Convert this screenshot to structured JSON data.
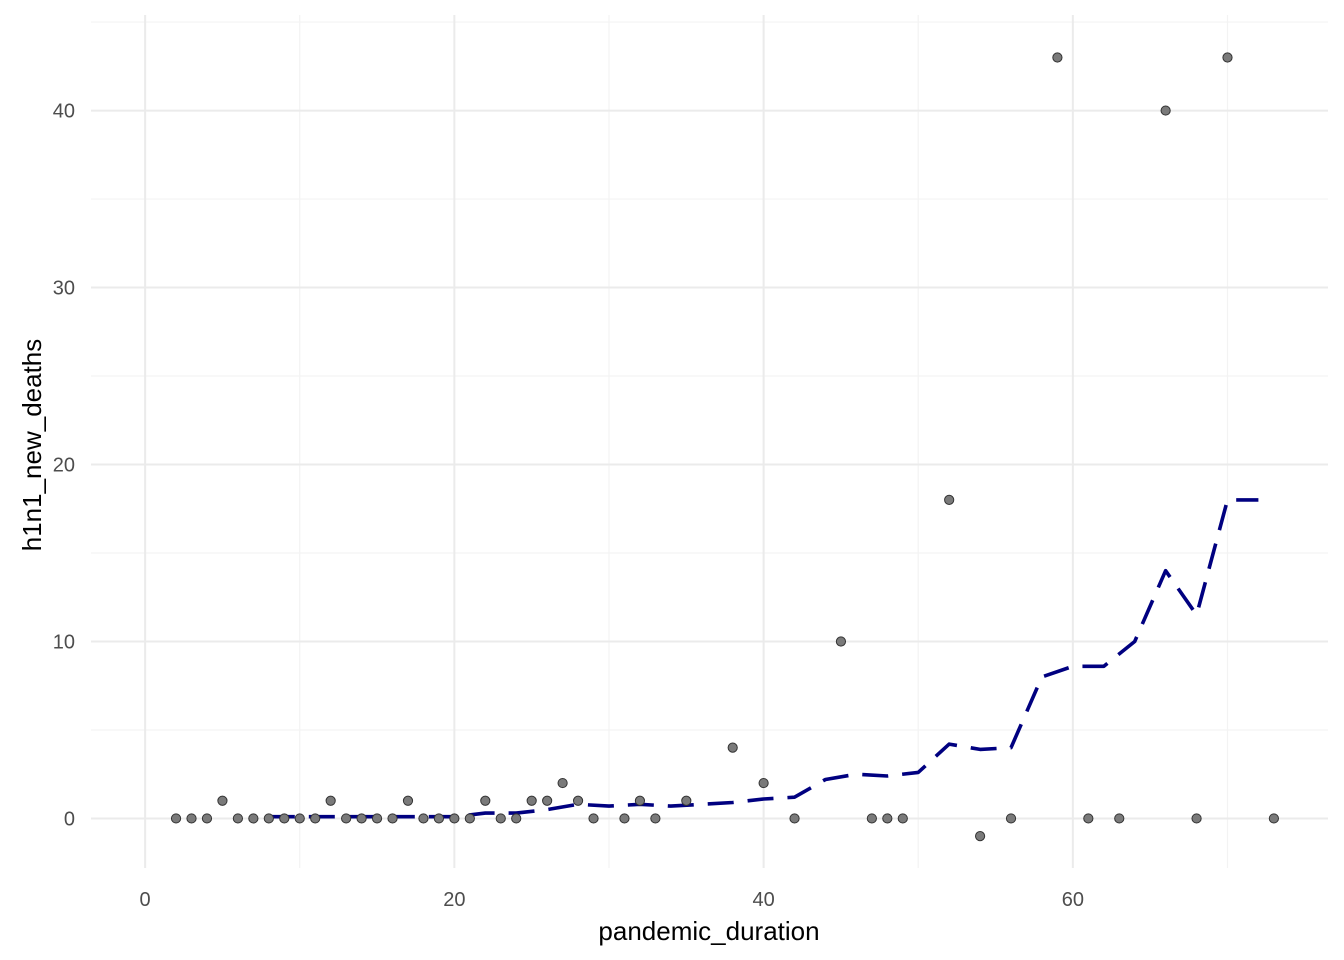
{
  "chart_data": {
    "type": "scatter",
    "title": "",
    "xlabel": "pandemic_duration",
    "ylabel": "h1n1_new_deaths",
    "xlim": [
      -3.5,
      76.5
    ],
    "ylim": [
      -2.8,
      45.4
    ],
    "x_ticks": [
      0,
      20,
      40,
      60
    ],
    "y_ticks": [
      0,
      10,
      20,
      30,
      40
    ],
    "grid": true,
    "legend": "none",
    "colors": {
      "points_fill": "#7a7a7a",
      "points_stroke": "#333333",
      "trend_line": "#000080",
      "grid_major": "#ebebeb",
      "grid_minor": "#f3f3f3"
    },
    "series": [
      {
        "type": "scatter",
        "points": [
          [
            2,
            0
          ],
          [
            3,
            0
          ],
          [
            4,
            0
          ],
          [
            5,
            1
          ],
          [
            6,
            0
          ],
          [
            7,
            0
          ],
          [
            8,
            0
          ],
          [
            9,
            0
          ],
          [
            10,
            0
          ],
          [
            11,
            0
          ],
          [
            12,
            1
          ],
          [
            13,
            0
          ],
          [
            14,
            0
          ],
          [
            15,
            0
          ],
          [
            16,
            0
          ],
          [
            17,
            1
          ],
          [
            18,
            0
          ],
          [
            19,
            0
          ],
          [
            20,
            0
          ],
          [
            21,
            0
          ],
          [
            22,
            1
          ],
          [
            23,
            0
          ],
          [
            24,
            0
          ],
          [
            25,
            1
          ],
          [
            26,
            1
          ],
          [
            27,
            2
          ],
          [
            28,
            1
          ],
          [
            29,
            0
          ],
          [
            31,
            0
          ],
          [
            32,
            1
          ],
          [
            33,
            0
          ],
          [
            35,
            1
          ],
          [
            38,
            4
          ],
          [
            40,
            2
          ],
          [
            42,
            0
          ],
          [
            45,
            10
          ],
          [
            47,
            0
          ],
          [
            48,
            0
          ],
          [
            49,
            0
          ],
          [
            52,
            18
          ],
          [
            54,
            -1
          ],
          [
            56,
            0
          ],
          [
            59,
            43
          ],
          [
            61,
            0
          ],
          [
            63,
            0
          ],
          [
            66,
            40
          ],
          [
            68,
            0
          ],
          [
            70,
            43
          ],
          [
            73,
            0
          ]
        ]
      },
      {
        "type": "line",
        "style": "dashed",
        "points": [
          [
            8,
            0.1
          ],
          [
            10,
            0.1
          ],
          [
            12,
            0.1
          ],
          [
            14,
            0.1
          ],
          [
            16,
            0.1
          ],
          [
            18,
            0.1
          ],
          [
            20,
            0.1
          ],
          [
            22,
            0.3
          ],
          [
            24,
            0.3
          ],
          [
            26,
            0.5
          ],
          [
            28,
            0.8
          ],
          [
            30,
            0.7
          ],
          [
            32,
            0.8
          ],
          [
            34,
            0.7
          ],
          [
            36,
            0.8
          ],
          [
            38,
            0.9
          ],
          [
            40,
            1.1
          ],
          [
            42,
            1.2
          ],
          [
            44,
            2.2
          ],
          [
            46,
            2.5
          ],
          [
            48,
            2.4
          ],
          [
            50,
            2.6
          ],
          [
            52,
            4.2
          ],
          [
            54,
            3.9
          ],
          [
            56,
            4
          ],
          [
            58,
            8
          ],
          [
            60,
            8.6
          ],
          [
            62,
            8.6
          ],
          [
            64,
            10
          ],
          [
            66,
            14
          ],
          [
            68,
            11.5
          ],
          [
            70,
            18
          ],
          [
            72,
            18
          ]
        ]
      }
    ]
  }
}
